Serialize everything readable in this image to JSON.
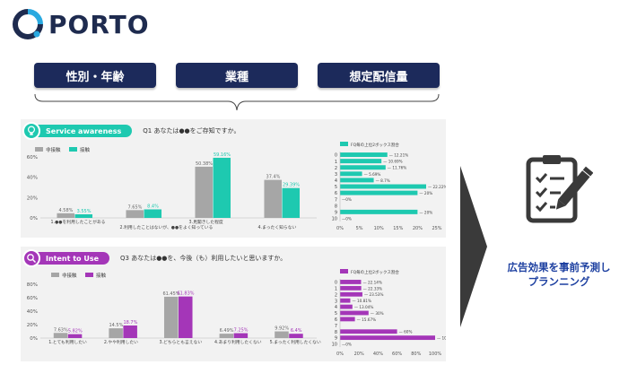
{
  "brand": {
    "name": "PORTO"
  },
  "tabs": [
    {
      "label": "性別・年齢"
    },
    {
      "label": "業種"
    },
    {
      "label": "想定配信量"
    }
  ],
  "colors": {
    "navy": "#1c2a5b",
    "teal": "#1ec9b0",
    "purple": "#a436b8",
    "gray": "#a6a6a6",
    "arrow": "#3a3a3a"
  },
  "panel1": {
    "title": "Service awareness",
    "icon": "lightbulb-icon",
    "question": "Q1 あなたは●●をご存知ですか。"
  },
  "panel2": {
    "title": "Intent to Use",
    "icon": "search-icon",
    "question": "Q3 あなたは●●を、今後（も）利用したいと思いますか。"
  },
  "conclusion": {
    "line1": "広告効果を事前予測し",
    "line2": "プランニング"
  },
  "chart_data": [
    {
      "type": "bar",
      "legend": [
        "非接触",
        "接触"
      ],
      "categories": [
        "1.●●を利用したことがある",
        "2.利用したことはないが、●●をよく知っている",
        "3.見聞きした程度",
        "4.まったく知らない"
      ],
      "series": [
        {
          "name": "非接触",
          "values": [
            4.58,
            7.65,
            50.38,
            37.4
          ],
          "labels": [
            "4.58%",
            "7.65%",
            "50.38%",
            "37.4%"
          ]
        },
        {
          "name": "接触",
          "values": [
            3.55,
            8.4,
            59.16,
            29.39
          ],
          "labels": [
            "3.55%",
            "8.4%",
            "59.16%",
            "29.39%"
          ]
        }
      ],
      "yticks": [
        "0%",
        "20%",
        "40%",
        "60%"
      ],
      "ylim": [
        0,
        60
      ]
    },
    {
      "type": "bar",
      "orientation": "horizontal",
      "legend": [
        "FQ毎の上位2ボックス割合"
      ],
      "categories": [
        "0",
        "1",
        "2",
        "3",
        "4",
        "5",
        "6",
        "7",
        "8",
        "9",
        "10"
      ],
      "values": [
        12.21,
        10.69,
        11.76,
        5.69,
        8.7,
        22.22,
        20,
        0,
        0,
        20,
        0
      ],
      "labels": [
        "12.21%",
        "10.69%",
        "11.76%",
        "5.69%",
        "8.7%",
        "22.22%",
        "20%",
        "0%",
        "",
        "20%",
        "0%"
      ],
      "xticks": [
        "0%",
        "5%",
        "10%",
        "15%",
        "20%",
        "25%"
      ],
      "xlim": [
        0,
        25
      ]
    },
    {
      "type": "bar",
      "legend": [
        "非接触",
        "接触"
      ],
      "categories": [
        "1.とても利用したい",
        "2.やや利用したい",
        "3.どちらとも言えない",
        "4.あまり利用したくない",
        "5.まったく利用したくない"
      ],
      "series": [
        {
          "name": "非接触",
          "values": [
            7.63,
            14.5,
            61.45,
            6.49,
            9.92
          ],
          "labels": [
            "7.63%",
            "14.5%",
            "61.45%",
            "6.49%",
            "9.92%"
          ]
        },
        {
          "name": "接触",
          "values": [
            5.82,
            18.7,
            61.83,
            7.25,
            6.4
          ],
          "labels": [
            "5.82%",
            "18.7%",
            "61.83%",
            "7.25%",
            "6.4%"
          ]
        }
      ],
      "yticks": [
        "0%",
        "20%",
        "40%",
        "60%",
        "80%"
      ],
      "ylim": [
        0,
        80
      ]
    },
    {
      "type": "bar",
      "orientation": "horizontal",
      "legend": [
        "FQ毎の上位2ボックス割合"
      ],
      "categories": [
        "0",
        "1",
        "2",
        "3",
        "4",
        "5",
        "6",
        "7",
        "8",
        "9",
        "10"
      ],
      "values": [
        22.14,
        22.33,
        23.53,
        10.81,
        13.04,
        30,
        15.67,
        0,
        60,
        100,
        0
      ],
      "labels": [
        "22.14%",
        "22.33%",
        "23.53%",
        "10.81%",
        "13.04%",
        "30%",
        "15.67%",
        "",
        "60%",
        "100",
        "0%"
      ],
      "xticks": [
        "0%",
        "20%",
        "40%",
        "60%",
        "80%",
        "100%"
      ],
      "xlim": [
        0,
        100
      ]
    }
  ]
}
